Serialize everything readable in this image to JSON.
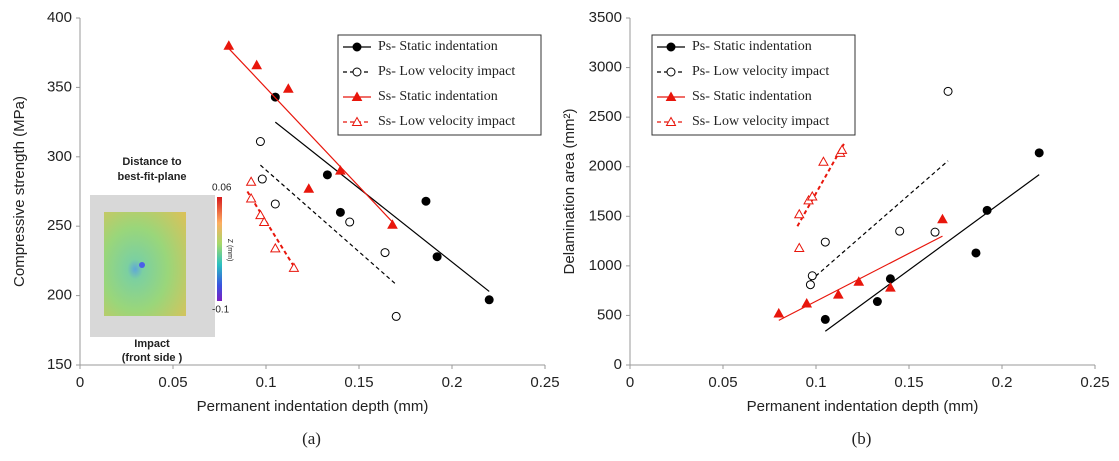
{
  "chart_data": [
    {
      "type": "scatter",
      "xlabel": "Permanent indentation depth (mm)",
      "ylabel": "Compressive strength (MPa)",
      "caption": "(a)",
      "xlim": [
        0,
        0.25
      ],
      "ylim": [
        150,
        400
      ],
      "xticks": [
        0,
        0.05,
        0.1,
        0.15,
        0.2,
        0.25
      ],
      "yticks": [
        150,
        200,
        250,
        300,
        350,
        400
      ],
      "series": [
        {
          "name": "Ps- Static indentation",
          "color": "#000000",
          "marker": "circle",
          "filled": true,
          "dashed": false,
          "x": [
            0.105,
            0.133,
            0.14,
            0.186,
            0.192,
            0.22
          ],
          "y": [
            343,
            287,
            260,
            268,
            228,
            197
          ],
          "trend": {
            "x": [
              0.105,
              0.22
            ],
            "y": [
              325,
              203
            ]
          }
        },
        {
          "name": "Ps- Low velocity impact",
          "color": "#000000",
          "marker": "circle",
          "filled": false,
          "dashed": true,
          "x": [
            0.097,
            0.098,
            0.105,
            0.145,
            0.164,
            0.17
          ],
          "y": [
            311,
            284,
            266,
            253,
            231,
            185
          ],
          "trend": {
            "x": [
              0.097,
              0.17
            ],
            "y": [
              294,
              208
            ]
          }
        },
        {
          "name": "Ss- Static indentation",
          "color": "#e8160c",
          "marker": "triangle",
          "filled": true,
          "dashed": false,
          "x": [
            0.08,
            0.095,
            0.112,
            0.123,
            0.14,
            0.168
          ],
          "y": [
            380,
            366,
            349,
            277,
            290,
            251
          ],
          "trend": {
            "x": [
              0.08,
              0.168
            ],
            "y": [
              378,
              253
            ]
          }
        },
        {
          "name": "Ss- Low velocity impact",
          "color": "#e8160c",
          "marker": "triangle",
          "filled": false,
          "dashed": true,
          "x": [
            0.092,
            0.092,
            0.097,
            0.099,
            0.105,
            0.115
          ],
          "y": [
            282,
            270,
            258,
            253,
            234,
            220
          ],
          "trend": {
            "x": [
              0.09,
              0.115
            ],
            "y": [
              275,
              221
            ]
          }
        }
      ],
      "inset": {
        "title": [
          "Distance to",
          "best-fit-plane"
        ],
        "colorbar_max": "0.06",
        "colorbar_min": "-0.1",
        "colorbar_label": "Z (mm)",
        "footer": [
          "Impact",
          "(front side )"
        ]
      }
    },
    {
      "type": "scatter",
      "xlabel": "Permanent indentation depth (mm)",
      "ylabel": "Delamination area (mm²)",
      "caption": "(b)",
      "xlim": [
        0,
        0.25
      ],
      "ylim": [
        0,
        3500
      ],
      "xticks": [
        0,
        0.05,
        0.1,
        0.15,
        0.2,
        0.25
      ],
      "yticks": [
        0,
        500,
        1000,
        1500,
        2000,
        2500,
        3000,
        3500
      ],
      "series": [
        {
          "name": "Ps- Static indentation",
          "color": "#000000",
          "marker": "circle",
          "filled": true,
          "dashed": false,
          "x": [
            0.105,
            0.133,
            0.14,
            0.186,
            0.192,
            0.22
          ],
          "y": [
            460,
            640,
            870,
            1130,
            1560,
            2140
          ],
          "trend": {
            "x": [
              0.105,
              0.22
            ],
            "y": [
              340,
              1920
            ]
          }
        },
        {
          "name": "Ps- Low velocity impact",
          "color": "#000000",
          "marker": "circle",
          "filled": false,
          "dashed": true,
          "x": [
            0.097,
            0.098,
            0.105,
            0.145,
            0.164,
            0.171
          ],
          "y": [
            810,
            900,
            1240,
            1350,
            1340,
            2760
          ],
          "trend": {
            "x": [
              0.097,
              0.171
            ],
            "y": [
              850,
              2060
            ]
          }
        },
        {
          "name": "Ss- Static indentation",
          "color": "#e8160c",
          "marker": "triangle",
          "filled": true,
          "dashed": false,
          "x": [
            0.08,
            0.095,
            0.112,
            0.123,
            0.14,
            0.168
          ],
          "y": [
            520,
            620,
            710,
            840,
            780,
            1470
          ],
          "trend": {
            "x": [
              0.08,
              0.168
            ],
            "y": [
              450,
              1300
            ]
          }
        },
        {
          "name": "Ss- Low velocity impact",
          "color": "#e8160c",
          "marker": "triangle",
          "filled": false,
          "dashed": true,
          "x": [
            0.091,
            0.091,
            0.096,
            0.098,
            0.104,
            0.113,
            0.114
          ],
          "y": [
            1180,
            1520,
            1660,
            1700,
            2050,
            2140,
            2170
          ],
          "trend": {
            "x": [
              0.09,
              0.115
            ],
            "y": [
              1400,
              2230
            ]
          }
        }
      ]
    }
  ]
}
